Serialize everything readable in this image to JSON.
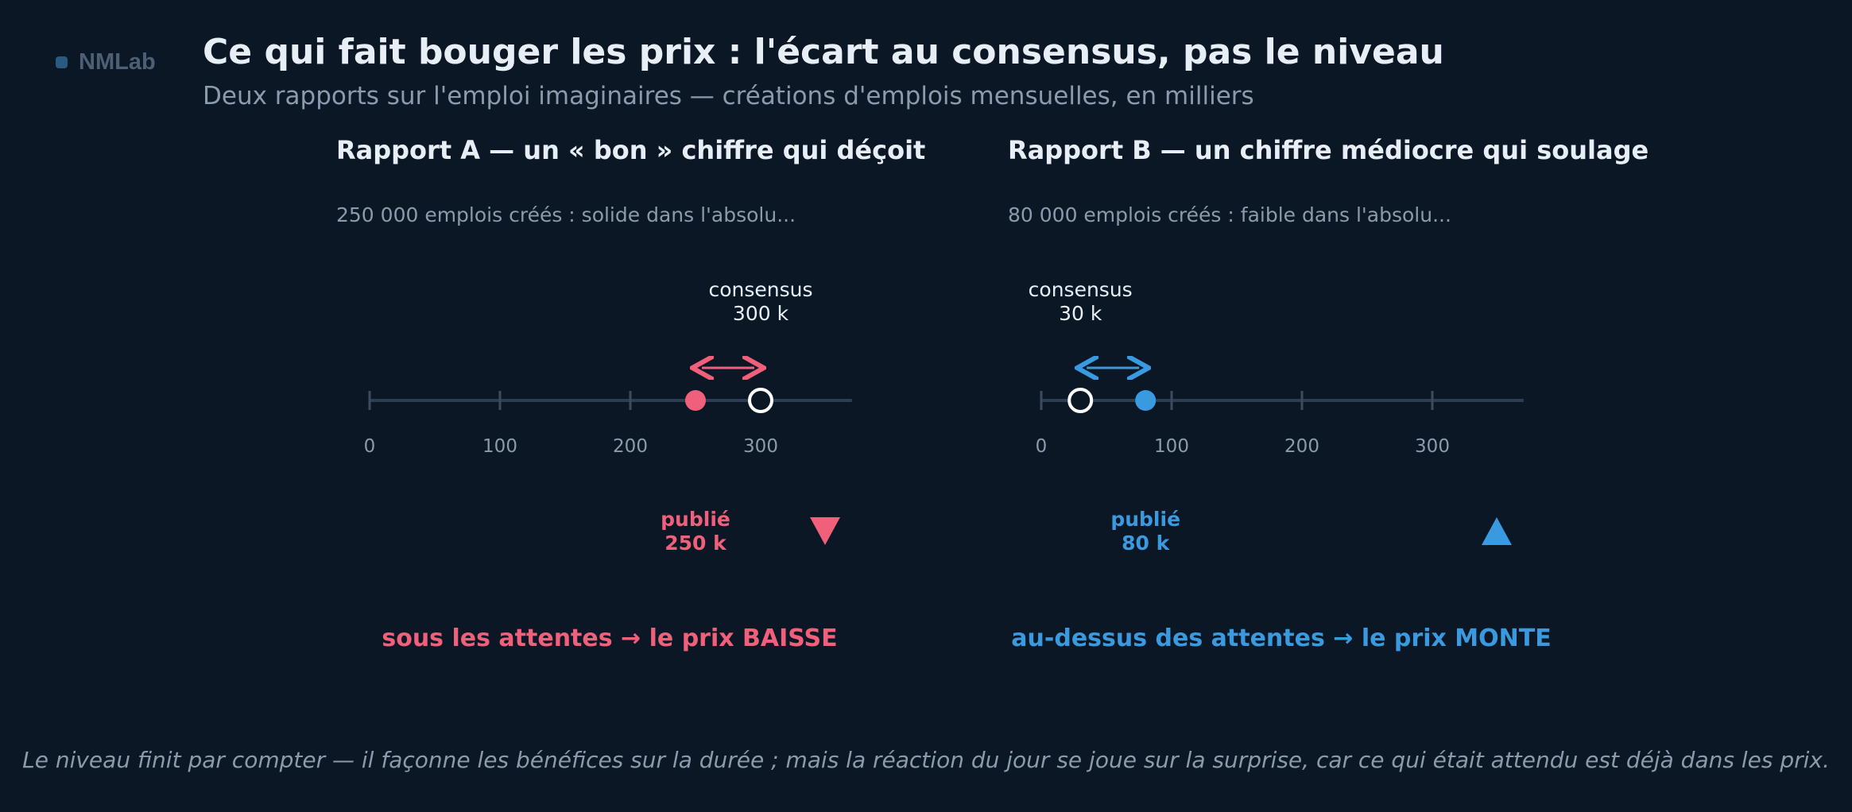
{
  "brand": {
    "name": "NMLab"
  },
  "header": {
    "title": "Ce qui fait bouger les prix : l'écart au consensus, pas le niveau",
    "subtitle": "Deux rapports sur l'emploi imaginaires — créations d'emplois mensuelles, en milliers"
  },
  "colors": {
    "negative": "#f0607a",
    "positive": "#3a9ae0",
    "axis": "#2f3d52",
    "text_muted": "#8c9aad"
  },
  "ticks": [
    0,
    100,
    200,
    300
  ],
  "axis_max": 370,
  "panels": [
    {
      "title": "Rapport A — un « bon » chiffre qui déçoit",
      "description": "250 000 emplois créés : solide dans l'absolu...",
      "consensus_value": 300,
      "consensus_label_1": "consensus",
      "consensus_label_2": "300 k",
      "published_value": 250,
      "published_label_1": "publié",
      "published_label_2": "250 k",
      "direction": "down",
      "direction_icon": "triangle-down-icon",
      "verdict": "sous les attentes → le prix BAISSE",
      "color": "#f0607a"
    },
    {
      "title": "Rapport B — un chiffre médiocre qui soulage",
      "description": "80 000 emplois créés : faible dans l'absolu...",
      "consensus_value": 30,
      "consensus_label_1": "consensus",
      "consensus_label_2": "30 k",
      "published_value": 80,
      "published_label_1": "publié",
      "published_label_2": "80 k",
      "direction": "up",
      "direction_icon": "triangle-up-icon",
      "verdict": "au-dessus des attentes → le prix MONTE",
      "color": "#3a9ae0"
    }
  ],
  "footnote": "Le niveau finit par compter — il façonne les bénéfices sur la durée ; mais la réaction du jour se joue sur la surprise, car ce qui était attendu est déjà dans les prix."
}
